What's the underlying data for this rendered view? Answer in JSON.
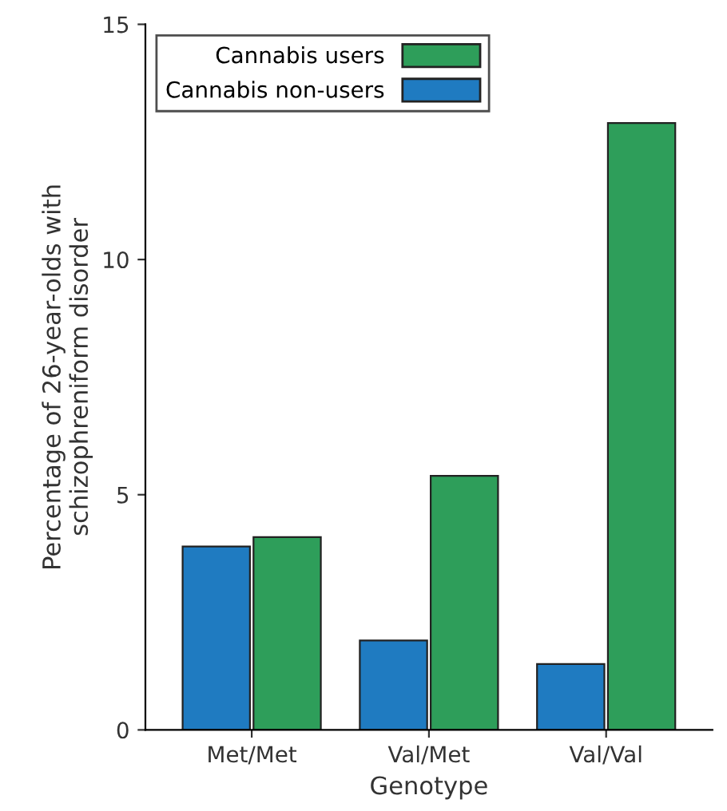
{
  "chart_data": {
    "type": "bar",
    "xlabel": "Genotype",
    "ylabel": "Percentage of 26-year-olds with\nschizophreniform disorder",
    "categories": [
      "Met/Met",
      "Val/Met",
      "Val/Val"
    ],
    "series": [
      {
        "name": "Cannabis non-users",
        "color": "#1f7bc1",
        "values": [
          3.9,
          1.9,
          1.4
        ]
      },
      {
        "name": "Cannabis users",
        "color": "#2e9e5a",
        "values": [
          4.1,
          5.4,
          12.9
        ]
      }
    ],
    "ylim": [
      0,
      15
    ],
    "yticks": [
      0,
      5,
      10,
      15
    ],
    "grid": false,
    "legend": "top left"
  }
}
